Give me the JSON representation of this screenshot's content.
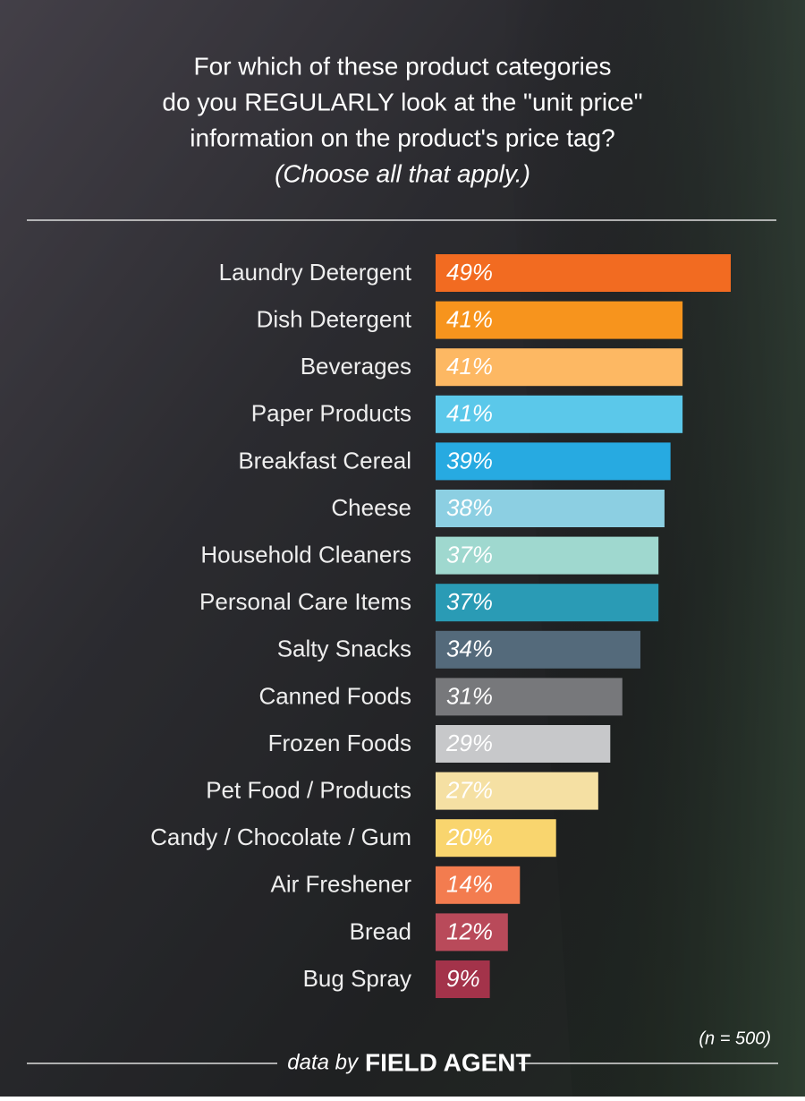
{
  "chart_data": {
    "type": "bar",
    "orientation": "horizontal",
    "title": [
      "For which of these product categories",
      "do you REGULARLY look at the \"unit price\"",
      "information on the product's  price tag?"
    ],
    "subtitle": "(Choose all that apply.)",
    "categories": [
      "Laundry Detergent",
      "Dish Detergent",
      "Beverages",
      "Paper Products",
      "Breakfast Cereal",
      "Cheese",
      "Household Cleaners",
      "Personal Care Items",
      "Salty Snacks",
      "Canned Foods",
      "Frozen Foods",
      "Pet Food / Products",
      "Candy / Chocolate / Gum",
      "Air Freshener",
      "Bread",
      "Bug Spray"
    ],
    "values": [
      49,
      41,
      41,
      41,
      39,
      38,
      37,
      37,
      34,
      31,
      29,
      27,
      20,
      14,
      12,
      9
    ],
    "value_labels": [
      "49%",
      "41%",
      "41%",
      "41%",
      "39%",
      "38%",
      "37%",
      "37%",
      "34%",
      "31%",
      "29%",
      "27%",
      "20%",
      "14%",
      "12%",
      "9%"
    ],
    "colors": [
      "#f26b21",
      "#f7941d",
      "#fdb863",
      "#5bc8ea",
      "#27aae1",
      "#8ccfe2",
      "#9fd8cf",
      "#2a9bb5",
      "#546a7b",
      "#77787b",
      "#c7c8ca",
      "#f5e0a3",
      "#f9d56e",
      "#f37c4f",
      "#b94a5a",
      "#a3334a"
    ],
    "note": "(n = 500)",
    "source": "data by",
    "brand": "FIELD AGENT"
  }
}
